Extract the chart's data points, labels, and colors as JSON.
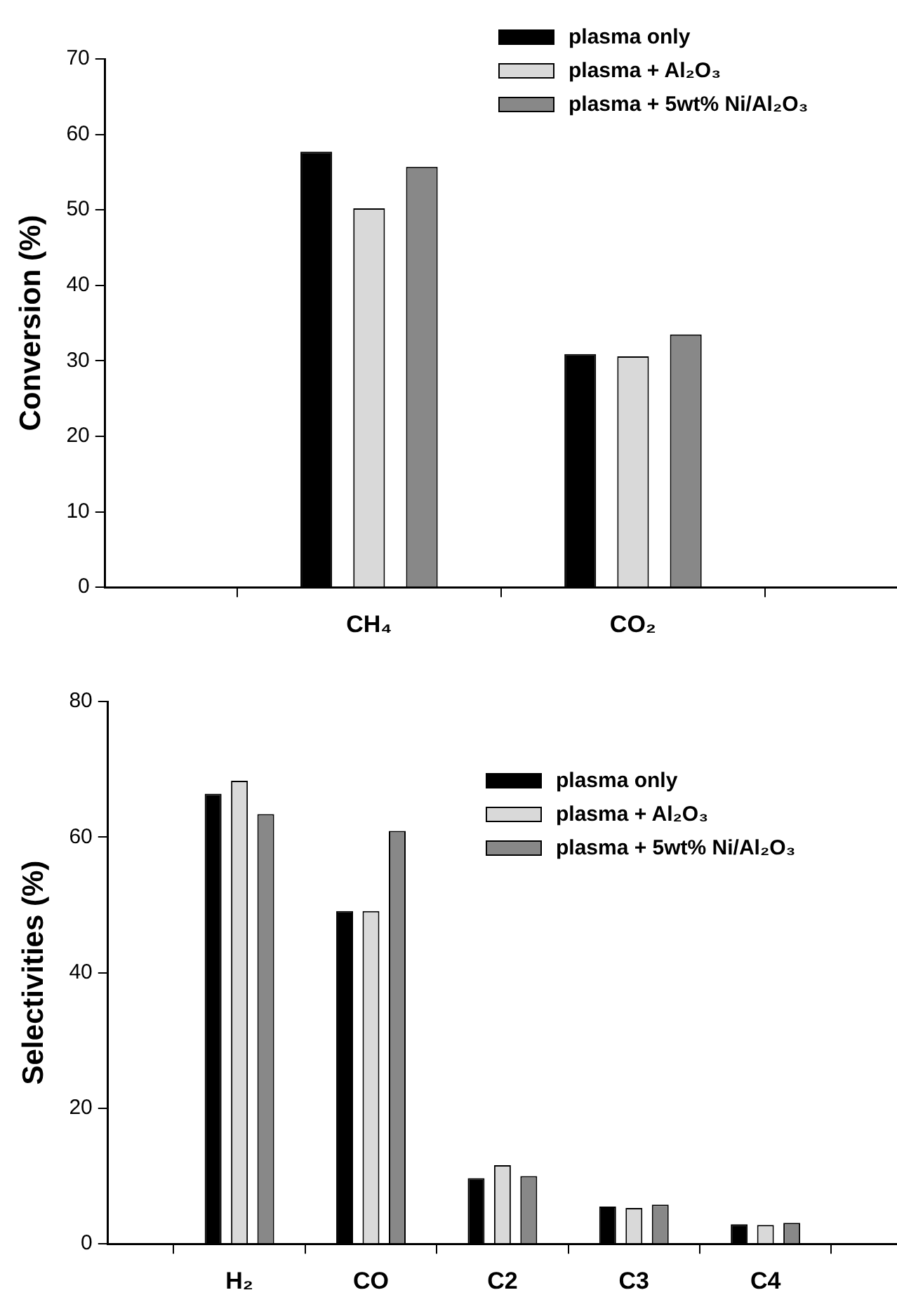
{
  "chart_data": [
    {
      "type": "bar",
      "ylabel": "Conversion (%)",
      "categories": [
        "CH₄",
        "CO₂"
      ],
      "series": [
        {
          "name": "plasma only",
          "color": "#000000",
          "values": [
            57.7,
            30.9
          ]
        },
        {
          "name": "plasma + Al₂O₃",
          "color": "#d9d9d9",
          "values": [
            50.2,
            30.6
          ]
        },
        {
          "name": "plasma + 5wt% Ni/Al₂O₃",
          "color": "#888888",
          "values": [
            55.7,
            33.5
          ]
        }
      ],
      "ylim": [
        0,
        70
      ],
      "yticks": [
        0,
        10,
        20,
        30,
        40,
        50,
        60,
        70
      ],
      "grid": false,
      "legend": "top right"
    },
    {
      "type": "bar",
      "ylabel": "Selectivities (%)",
      "categories": [
        "H₂",
        "CO",
        "C2",
        "C3",
        "C4"
      ],
      "series": [
        {
          "name": "plasma only",
          "color": "#000000",
          "values": [
            66.4,
            49.1,
            9.7,
            5.5,
            2.9
          ]
        },
        {
          "name": "plasma + Al₂O₃",
          "color": "#d9d9d9",
          "values": [
            68.3,
            49.1,
            11.6,
            5.3,
            2.8
          ]
        },
        {
          "name": "plasma + 5wt% Ni/Al₂O₃",
          "color": "#888888",
          "values": [
            63.4,
            60.9,
            10.0,
            5.8,
            3.1
          ]
        }
      ],
      "ylim": [
        0,
        80
      ],
      "yticks": [
        0,
        20,
        40,
        60,
        80
      ],
      "grid": false,
      "legend": "top right"
    }
  ]
}
